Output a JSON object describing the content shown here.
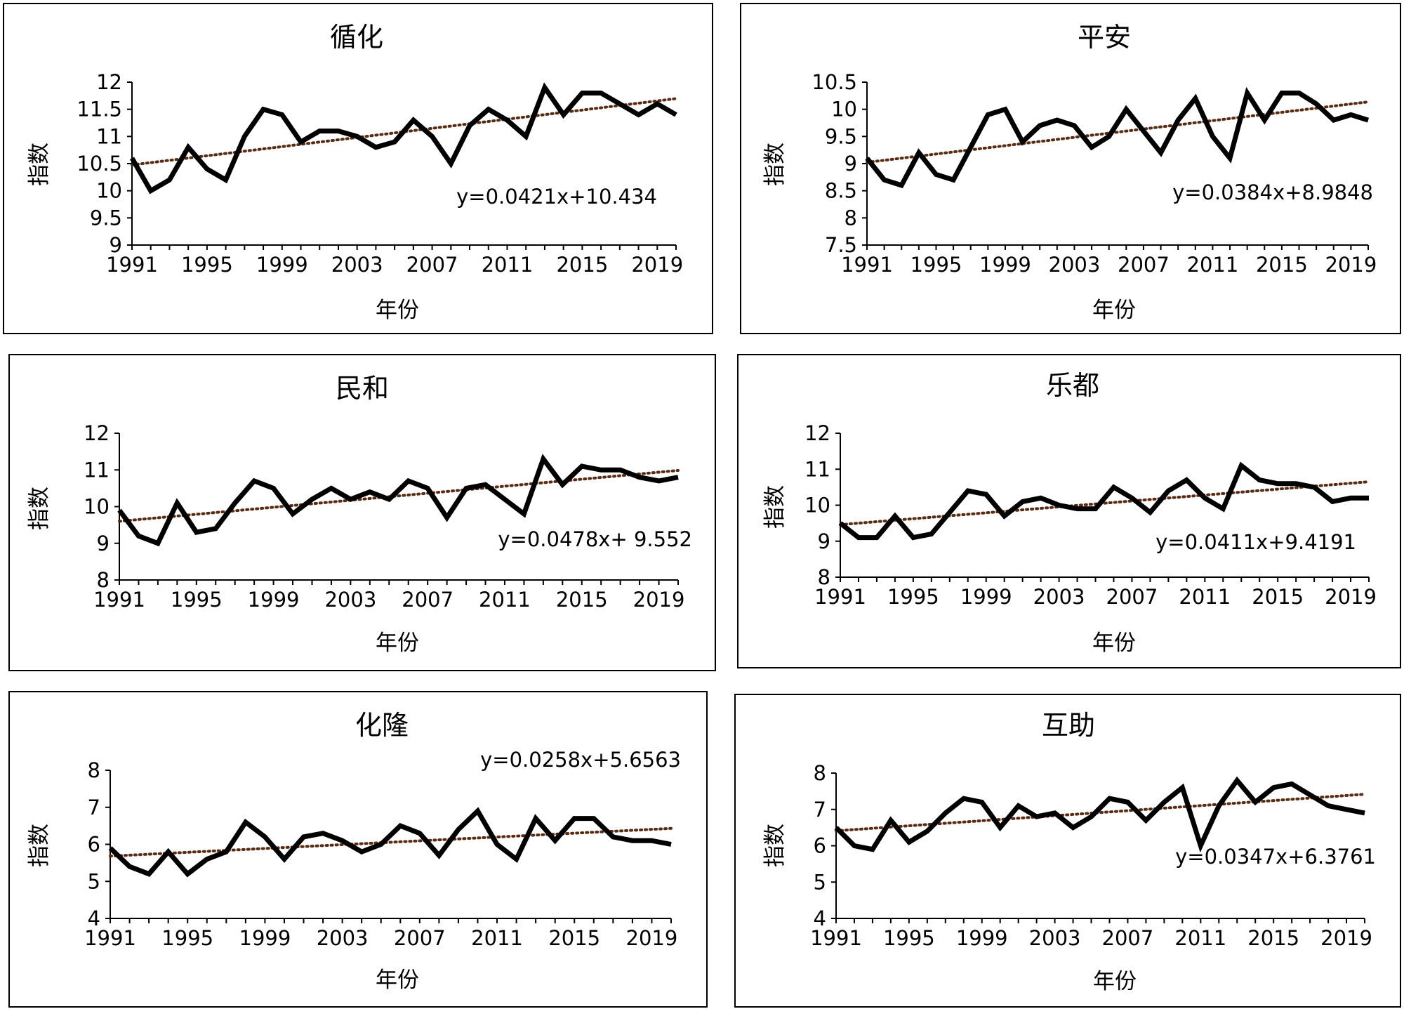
{
  "colors": {
    "series": "#000000",
    "trend": "#5a2a12",
    "background": "#ffffff"
  },
  "chart_data": [
    {
      "type": "line",
      "title": "循化",
      "xlabel": "年份",
      "ylabel": "指数",
      "x_ticks": [
        "1991",
        "1995",
        "1999",
        "2003",
        "2007",
        "2011",
        "2015",
        "2019"
      ],
      "x_range": [
        1991,
        2020
      ],
      "ylim": [
        9,
        12
      ],
      "y_step": 0.5,
      "y_ticks": [
        "9",
        "9.5",
        "10",
        "10.5",
        "11",
        "11.5",
        "12"
      ],
      "series": [
        {
          "name": "指数",
          "x": [
            1991,
            1992,
            1993,
            1994,
            1995,
            1996,
            1997,
            1998,
            1999,
            2000,
            2001,
            2002,
            2003,
            2004,
            2005,
            2006,
            2007,
            2008,
            2009,
            2010,
            2011,
            2012,
            2013,
            2014,
            2015,
            2016,
            2017,
            2018,
            2019,
            2020
          ],
          "values": [
            10.6,
            10.0,
            10.2,
            10.8,
            10.4,
            10.2,
            11.0,
            11.5,
            11.4,
            10.9,
            11.1,
            11.1,
            11.0,
            10.8,
            10.9,
            11.3,
            11.0,
            10.5,
            11.2,
            11.5,
            11.3,
            11.0,
            11.9,
            11.4,
            11.8,
            11.8,
            11.6,
            11.4,
            11.6,
            11.4
          ]
        }
      ],
      "trendline": {
        "slope": 0.0421,
        "intercept": 10.434,
        "style": "dotted"
      },
      "equation": "y=0.0421x+10.434"
    },
    {
      "type": "line",
      "title": "平安",
      "xlabel": "年份",
      "ylabel": "指数",
      "x_ticks": [
        "1991",
        "1995",
        "1999",
        "2003",
        "2007",
        "2011",
        "2015",
        "2019"
      ],
      "x_range": [
        1991,
        2020
      ],
      "ylim": [
        7.5,
        10.5
      ],
      "y_step": 0.5,
      "y_ticks": [
        "7.5",
        "8",
        "8.5",
        "9",
        "9.5",
        "10",
        "10.5"
      ],
      "series": [
        {
          "name": "指数",
          "x": [
            1991,
            1992,
            1993,
            1994,
            1995,
            1996,
            1997,
            1998,
            1999,
            2000,
            2001,
            2002,
            2003,
            2004,
            2005,
            2006,
            2007,
            2008,
            2009,
            2010,
            2011,
            2012,
            2013,
            2014,
            2015,
            2016,
            2017,
            2018,
            2019,
            2020
          ],
          "values": [
            9.1,
            8.7,
            8.6,
            9.2,
            8.8,
            8.7,
            9.3,
            9.9,
            10.0,
            9.4,
            9.7,
            9.8,
            9.7,
            9.3,
            9.5,
            10.0,
            9.6,
            9.2,
            9.8,
            10.2,
            9.5,
            9.1,
            10.3,
            9.8,
            10.3,
            10.3,
            10.1,
            9.8,
            9.9,
            9.8
          ]
        }
      ],
      "trendline": {
        "slope": 0.0384,
        "intercept": 8.9848,
        "style": "dotted"
      },
      "equation": "y=0.0384x+8.9848"
    },
    {
      "type": "line",
      "title": "民和",
      "xlabel": "年份",
      "ylabel": "指数",
      "x_ticks": [
        "1991",
        "1995",
        "1999",
        "2003",
        "2007",
        "2011",
        "2015",
        "2019"
      ],
      "x_range": [
        1991,
        2020
      ],
      "ylim": [
        8,
        12
      ],
      "y_step": 1,
      "y_ticks": [
        "8",
        "9",
        "10",
        "11",
        "12"
      ],
      "series": [
        {
          "name": "指数",
          "x": [
            1991,
            1992,
            1993,
            1994,
            1995,
            1996,
            1997,
            1998,
            1999,
            2000,
            2001,
            2002,
            2003,
            2004,
            2005,
            2006,
            2007,
            2008,
            2009,
            2010,
            2011,
            2012,
            2013,
            2014,
            2015,
            2016,
            2017,
            2018,
            2019,
            2020
          ],
          "values": [
            9.9,
            9.2,
            9.0,
            10.1,
            9.3,
            9.4,
            10.1,
            10.7,
            10.5,
            9.8,
            10.2,
            10.5,
            10.2,
            10.4,
            10.2,
            10.7,
            10.5,
            9.7,
            10.5,
            10.6,
            10.2,
            9.8,
            11.3,
            10.6,
            11.1,
            11.0,
            11.0,
            10.8,
            10.7,
            10.8
          ]
        }
      ],
      "trendline": {
        "slope": 0.0478,
        "intercept": 9.552,
        "style": "dotted"
      },
      "equation": "y=0.0478x+ 9.552"
    },
    {
      "type": "line",
      "title": "乐都",
      "xlabel": "年份",
      "ylabel": "指数",
      "x_ticks": [
        "1991",
        "1995",
        "1999",
        "2003",
        "2007",
        "2011",
        "2015",
        "2019"
      ],
      "x_range": [
        1991,
        2020
      ],
      "ylim": [
        8,
        12
      ],
      "y_step": 1,
      "y_ticks": [
        "8",
        "9",
        "10",
        "11",
        "12"
      ],
      "series": [
        {
          "name": "指数",
          "x": [
            1991,
            1992,
            1993,
            1994,
            1995,
            1996,
            1997,
            1998,
            1999,
            2000,
            2001,
            2002,
            2003,
            2004,
            2005,
            2006,
            2007,
            2008,
            2009,
            2010,
            2011,
            2012,
            2013,
            2014,
            2015,
            2016,
            2017,
            2018,
            2019,
            2020
          ],
          "values": [
            9.5,
            9.1,
            9.1,
            9.7,
            9.1,
            9.2,
            9.8,
            10.4,
            10.3,
            9.7,
            10.1,
            10.2,
            10.0,
            9.9,
            9.9,
            10.5,
            10.2,
            9.8,
            10.4,
            10.7,
            10.2,
            9.9,
            11.1,
            10.7,
            10.6,
            10.6,
            10.5,
            10.1,
            10.2,
            10.2
          ]
        }
      ],
      "trendline": {
        "slope": 0.0411,
        "intercept": 9.4191,
        "style": "dotted"
      },
      "equation": "y=0.0411x+9.4191"
    },
    {
      "type": "line",
      "title": "化隆",
      "xlabel": "年份",
      "ylabel": "指数",
      "x_ticks": [
        "1991",
        "1995",
        "1999",
        "2003",
        "2007",
        "2011",
        "2015",
        "2019"
      ],
      "x_range": [
        1991,
        2020
      ],
      "ylim": [
        4,
        8
      ],
      "y_step": 1,
      "y_ticks": [
        "4",
        "5",
        "6",
        "7",
        "8"
      ],
      "series": [
        {
          "name": "指数",
          "x": [
            1991,
            1992,
            1993,
            1994,
            1995,
            1996,
            1997,
            1998,
            1999,
            2000,
            2001,
            2002,
            2003,
            2004,
            2005,
            2006,
            2007,
            2008,
            2009,
            2010,
            2011,
            2012,
            2013,
            2014,
            2015,
            2016,
            2017,
            2018,
            2019,
            2020
          ],
          "values": [
            5.9,
            5.4,
            5.2,
            5.8,
            5.2,
            5.6,
            5.8,
            6.6,
            6.2,
            5.6,
            6.2,
            6.3,
            6.1,
            5.8,
            6.0,
            6.5,
            6.3,
            5.7,
            6.4,
            6.9,
            6.0,
            5.6,
            6.7,
            6.1,
            6.7,
            6.7,
            6.2,
            6.1,
            6.1,
            6.0
          ]
        }
      ],
      "trendline": {
        "slope": 0.0258,
        "intercept": 5.6563,
        "style": "dotted"
      },
      "equation": "y=0.0258x+5.6563"
    },
    {
      "type": "line",
      "title": "互助",
      "xlabel": "年份",
      "ylabel": "指数",
      "x_ticks": [
        "1991",
        "1995",
        "1999",
        "2003",
        "2007",
        "2011",
        "2015",
        "2019"
      ],
      "x_range": [
        1991,
        2020
      ],
      "ylim": [
        4,
        8
      ],
      "y_step": 1,
      "y_ticks": [
        "4",
        "5",
        "6",
        "7",
        "8"
      ],
      "series": [
        {
          "name": "指数",
          "x": [
            1991,
            1992,
            1993,
            1994,
            1995,
            1996,
            1997,
            1998,
            1999,
            2000,
            2001,
            2002,
            2003,
            2004,
            2005,
            2006,
            2007,
            2008,
            2009,
            2010,
            2011,
            2012,
            2013,
            2014,
            2015,
            2016,
            2017,
            2018,
            2019,
            2020
          ],
          "values": [
            6.5,
            6.0,
            5.9,
            6.7,
            6.1,
            6.4,
            6.9,
            7.3,
            7.2,
            6.5,
            7.1,
            6.8,
            6.9,
            6.5,
            6.8,
            7.3,
            7.2,
            6.7,
            7.2,
            7.6,
            6.0,
            7.1,
            7.8,
            7.2,
            7.6,
            7.7,
            7.4,
            7.1,
            7.0,
            6.9
          ]
        }
      ],
      "trendline": {
        "slope": 0.0347,
        "intercept": 6.3761,
        "style": "dotted"
      },
      "equation": "y=0.0347x+6.3761"
    }
  ]
}
